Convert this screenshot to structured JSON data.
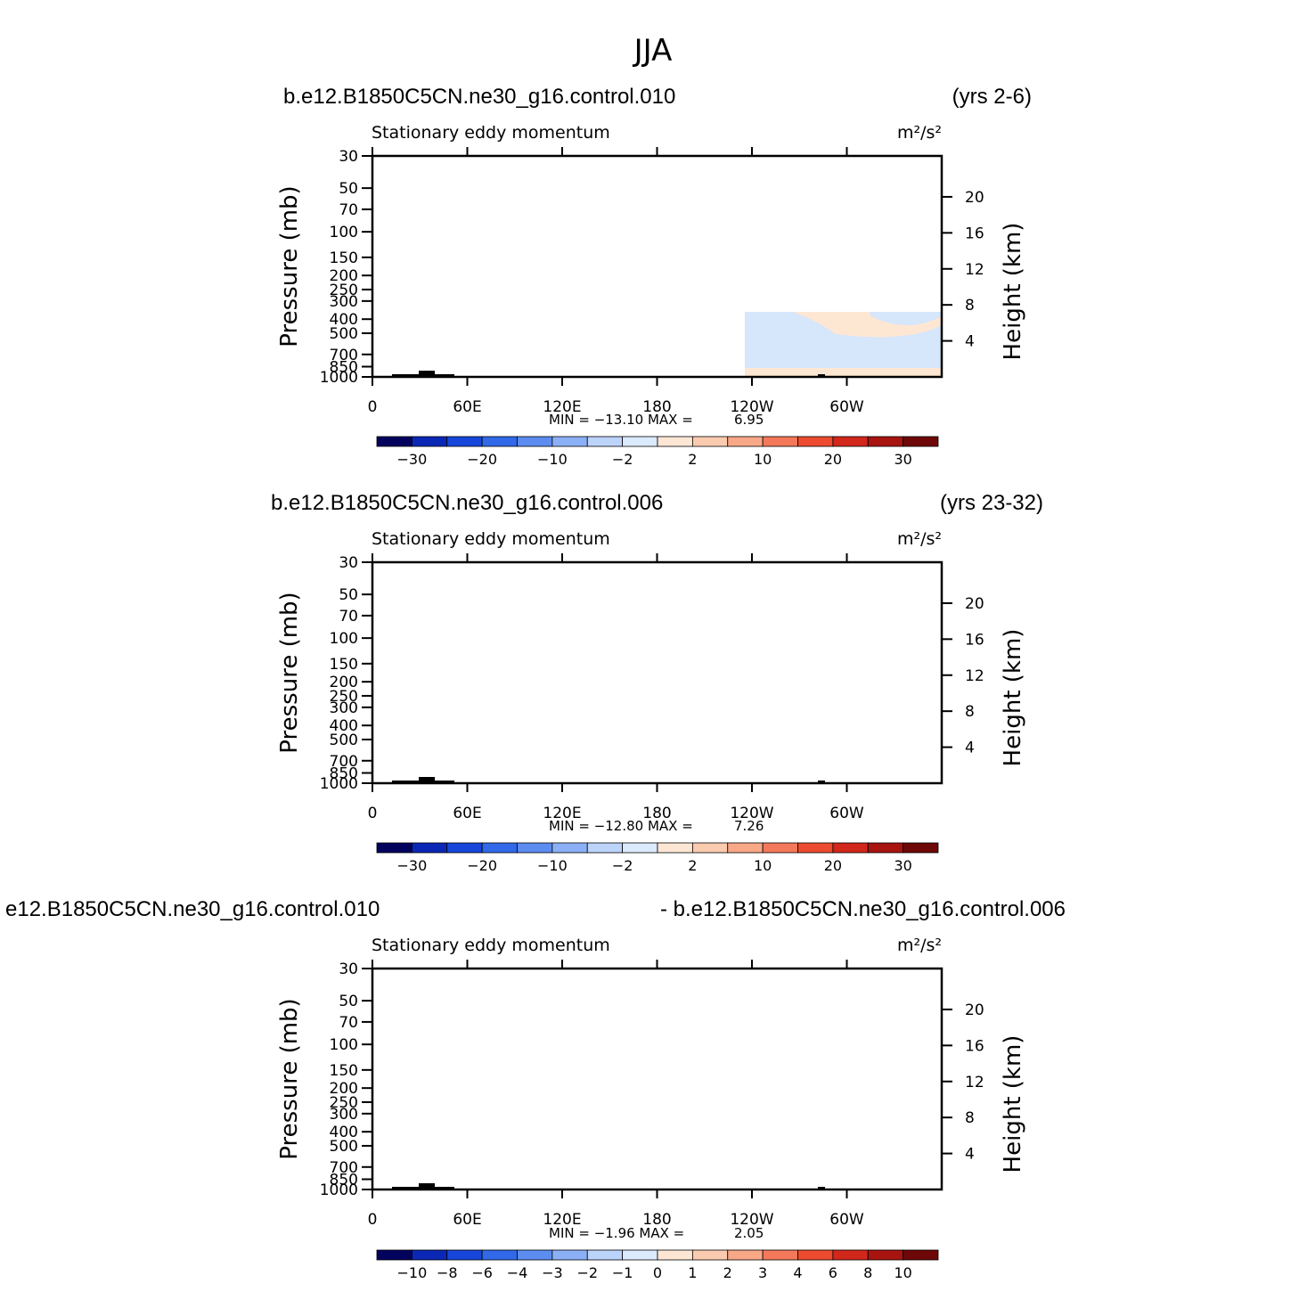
{
  "title": "JJA",
  "panels": [
    {
      "left_title": "b.e12.B1850C5CN.ne30_g16.control.010",
      "right_title": "(yrs 2-6)",
      "variable": "Stationary eddy momentum",
      "units": "m²/s²",
      "min_label": "MIN =  −13.10   MAX =",
      "max_value": "6.95",
      "colorbar_labels": [
        "−30",
        "−20",
        "−10",
        "−2",
        "2",
        "10",
        "20",
        "30"
      ]
    },
    {
      "left_title": "b.e12.B1850C5CN.ne30_g16.control.006",
      "right_title": "(yrs 23-32)",
      "variable": "Stationary eddy momentum",
      "units": "m²/s²",
      "min_label": "MIN =  −12.80   MAX =",
      "max_value": "7.26",
      "colorbar_labels": [
        "−30",
        "−20",
        "−10",
        "−2",
        "2",
        "10",
        "20",
        "30"
      ]
    },
    {
      "left_title": "e12.B1850C5CN.ne30_g16.control.010",
      "right_title": "- b.e12.B1850C5CN.ne30_g16.control.006",
      "variable": "Stationary eddy momentum",
      "units": "m²/s²",
      "min_label": "MIN =    −1.96   MAX =",
      "max_value": "2.05",
      "colorbar_labels": [
        "−10",
        "−8",
        "−6",
        "−4",
        "−3",
        "−2",
        "−1",
        "0",
        "1",
        "2",
        "3",
        "4",
        "6",
        "8",
        "10"
      ]
    }
  ],
  "axes": {
    "y_left_label": "Pressure (mb)",
    "y_right_label": "Height (km)",
    "pressure_ticks": [
      "30",
      "50",
      "70",
      "100",
      "150",
      "200",
      "250",
      "300",
      "400",
      "500",
      "700",
      "850",
      "1000"
    ],
    "height_ticks": [
      "20",
      "16",
      "12",
      "8",
      "4"
    ],
    "lon_ticks": [
      "0",
      "60E",
      "120E",
      "180",
      "120W",
      "60W"
    ]
  },
  "colors": {
    "colorbar": [
      "#03035e",
      "#0a27b5",
      "#1747da",
      "#3169e8",
      "#5c8cf0",
      "#8cb0f5",
      "#bcd3fa",
      "#dbeafd",
      "#fde7d4",
      "#fbcbb0",
      "#f8a887",
      "#f4785a",
      "#ec4b2f",
      "#d2271b",
      "#a81410",
      "#6e0707"
    ],
    "light_blue": "#d6e6fb",
    "light_orange": "#fee7d2",
    "mid_blue": "#a9c4f5",
    "mid_orange": "#f9b99e",
    "dark_blue": "#6790ea",
    "dark_orange": "#f5947a"
  },
  "chart_data": [
    {
      "type": "heatmap",
      "title": "Stationary eddy momentum",
      "xlabel": "",
      "ylabel": "Pressure (mb)",
      "y2label": "Height (km)",
      "x_ticks": [
        "0",
        "60E",
        "120E",
        "180",
        "120W",
        "60W"
      ],
      "y_ticks": [
        30,
        50,
        70,
        100,
        150,
        200,
        250,
        300,
        400,
        500,
        700,
        850,
        1000
      ],
      "y_scale": "log",
      "min": -13.1,
      "max": 6.95,
      "levels": [
        -35,
        -30,
        -25,
        -20,
        -15,
        -10,
        -5,
        -2,
        0,
        2,
        5,
        10,
        15,
        20,
        25,
        30,
        35
      ]
    },
    {
      "type": "heatmap",
      "title": "Stationary eddy momentum",
      "xlabel": "",
      "ylabel": "Pressure (mb)",
      "y2label": "Height (km)",
      "x_ticks": [
        "0",
        "60E",
        "120E",
        "180",
        "120W",
        "60W"
      ],
      "y_ticks": [
        30,
        50,
        70,
        100,
        150,
        200,
        250,
        300,
        400,
        500,
        700,
        850,
        1000
      ],
      "y_scale": "log",
      "min": -12.8,
      "max": 7.26,
      "levels": [
        -35,
        -30,
        -25,
        -20,
        -15,
        -10,
        -5,
        -2,
        0,
        2,
        5,
        10,
        15,
        20,
        25,
        30,
        35
      ]
    },
    {
      "type": "heatmap",
      "title": "Stationary eddy momentum",
      "xlabel": "",
      "ylabel": "Pressure (mb)",
      "y2label": "Height (km)",
      "x_ticks": [
        "0",
        "60E",
        "120E",
        "180",
        "120W",
        "60W"
      ],
      "y_ticks": [
        30,
        50,
        70,
        100,
        150,
        200,
        250,
        300,
        400,
        500,
        700,
        850,
        1000
      ],
      "y_scale": "log",
      "min": -1.96,
      "max": 2.05,
      "levels": [
        -12,
        -10,
        -8,
        -6,
        -4,
        -3,
        -2,
        -1,
        0,
        1,
        2,
        3,
        4,
        6,
        8,
        10,
        12
      ]
    }
  ]
}
